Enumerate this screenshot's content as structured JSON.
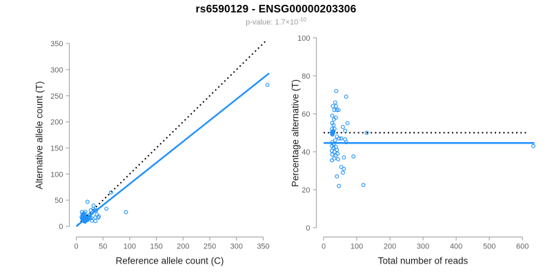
{
  "header": {
    "title": "rs6590129 - ENSG00000203306",
    "pvalue_text": "p-value: 1.7×10",
    "pvalue_exponent": "-10"
  },
  "colors": {
    "point_blue": "#1E90FF",
    "fit_blue": "#1E90FF",
    "reference_black": "#000000",
    "axis_line": "#a9a9a9",
    "tick_text": "#646464",
    "axis_title_text": "#1f1f1f",
    "subtitle_gray": "#9b9b9b"
  },
  "chart_data": [
    {
      "type": "scatter",
      "panel": "left",
      "xlabel": "Reference allele count (C)",
      "ylabel": "Alternative allele count (T)",
      "xlim": [
        0,
        362
      ],
      "ylim": [
        0,
        358
      ],
      "xticks": [
        0,
        50,
        100,
        150,
        200,
        250,
        300,
        350
      ],
      "yticks": [
        0,
        50,
        100,
        150,
        200,
        250,
        300,
        350
      ],
      "grid": false,
      "legend": null,
      "lines": [
        {
          "name": "identity-line",
          "style": "dotted",
          "x1": 2.5,
          "y1": 2.5,
          "x2": 356,
          "y2": 356
        },
        {
          "name": "regression-line",
          "style": "solid",
          "x1": 0,
          "y1": 0,
          "x2": 361,
          "y2": 293
        }
      ],
      "points": [
        [
          10.6,
          27.4
        ],
        [
          21.1,
          46.9
        ],
        [
          11.9,
          23.1
        ],
        [
          10.1,
          17.9
        ],
        [
          13.3,
          23.7
        ],
        [
          12.2,
          19.8
        ],
        [
          15.2,
          24.8
        ],
        [
          17.1,
          27.9
        ],
        [
          10.7,
          15.3
        ],
        [
          15.5,
          21.5
        ],
        [
          13.3,
          17.7
        ],
        [
          27.3,
          30.7
        ],
        [
          32.4,
          39.6
        ],
        [
          11.7,
          14.3
        ],
        [
          13.8,
          16.2
        ],
        [
          12.0,
          13.0
        ],
        [
          15.8,
          17.2
        ],
        [
          13.4,
          13.6
        ],
        [
          14.5,
          14.5
        ],
        [
          13.0,
          12.9
        ],
        [
          12.5,
          12.6
        ],
        [
          14.0,
          14.0
        ],
        [
          13.6,
          14.3
        ],
        [
          12.3,
          12.7
        ],
        [
          14.8,
          15.2
        ],
        [
          12.9,
          13.1
        ],
        [
          31.9,
          33.2
        ],
        [
          65.0,
          65.0
        ],
        [
          20.8,
          19.2
        ],
        [
          24.9,
          22.1
        ],
        [
          28.1,
          24.9
        ],
        [
          34.8,
          30.2
        ],
        [
          18.9,
          16.1
        ],
        [
          14.3,
          11.7
        ],
        [
          37.4,
          30.6
        ],
        [
          16.8,
          13.2
        ],
        [
          14.3,
          10.8
        ],
        [
          21.3,
          15.7
        ],
        [
          17.4,
          12.6
        ],
        [
          23.6,
          16.4
        ],
        [
          14.9,
          10.1
        ],
        [
          19.8,
          13.2
        ],
        [
          25.6,
          16.4
        ],
        [
          16.0,
          10.0
        ],
        [
          22.9,
          14.1
        ],
        [
          38.4,
          22.6
        ],
        [
          56.3,
          33.8
        ],
        [
          20.3,
          11.7
        ],
        [
          28.2,
          15.8
        ],
        [
          16.1,
          8.9
        ],
        [
          36.0,
          17.0
        ],
        [
          42.1,
          18.9
        ],
        [
          41.2,
          16.8
        ],
        [
          29.2,
          10.8
        ],
        [
          35.9,
          10.1
        ],
        [
          93.0,
          27.0
        ],
        [
          358.0,
          271.0
        ]
      ]
    },
    {
      "type": "scatter",
      "panel": "right",
      "xlabel": "Total number of reads",
      "ylabel": "Percentage alternative (T)",
      "xlim": [
        0,
        636
      ],
      "ylim": [
        0,
        100
      ],
      "xticks": [
        0,
        100,
        200,
        300,
        400,
        500,
        600
      ],
      "yticks": [
        0,
        20,
        40,
        60,
        80,
        100
      ],
      "grid": false,
      "legend": null,
      "lines": [
        {
          "name": "null-line",
          "style": "dotted",
          "x1": 0,
          "y1": 50,
          "x2": 618,
          "y2": 50
        },
        {
          "name": "fit-line",
          "style": "solid",
          "x1": 0,
          "y1": 44.6,
          "x2": 636,
          "y2": 44.6
        }
      ],
      "points": [
        [
          38,
          72
        ],
        [
          68,
          69
        ],
        [
          35,
          66
        ],
        [
          28,
          64
        ],
        [
          37,
          64
        ],
        [
          32,
          62
        ],
        [
          40,
          62
        ],
        [
          45,
          62
        ],
        [
          26,
          59
        ],
        [
          37,
          58
        ],
        [
          31,
          57
        ],
        [
          58,
          53
        ],
        [
          72,
          55
        ],
        [
          26,
          55
        ],
        [
          30,
          54
        ],
        [
          25,
          52
        ],
        [
          33,
          52
        ],
        [
          27,
          50.5
        ],
        [
          29,
          50
        ],
        [
          26,
          49.8
        ],
        [
          25,
          50.2
        ],
        [
          28,
          50
        ],
        [
          27.5,
          50.7
        ],
        [
          25.6,
          49.4
        ],
        [
          29.5,
          50.9
        ],
        [
          26.5,
          49.1
        ],
        [
          65,
          51
        ],
        [
          130,
          50
        ],
        [
          40,
          48
        ],
        [
          47,
          47
        ],
        [
          53,
          47
        ],
        [
          65,
          46.5
        ],
        [
          35,
          46
        ],
        [
          26,
          45
        ],
        [
          68,
          45
        ],
        [
          30,
          44
        ],
        [
          25,
          43
        ],
        [
          37,
          42.5
        ],
        [
          30,
          42
        ],
        [
          40,
          41
        ],
        [
          25,
          40.5
        ],
        [
          33,
          40
        ],
        [
          42,
          39
        ],
        [
          26,
          38.5
        ],
        [
          37,
          38
        ],
        [
          61,
          37
        ],
        [
          90,
          37.5
        ],
        [
          32,
          36.5
        ],
        [
          44,
          36
        ],
        [
          25,
          35.5
        ],
        [
          53,
          32
        ],
        [
          61,
          31
        ],
        [
          58,
          29
        ],
        [
          40,
          27
        ],
        [
          46,
          22
        ],
        [
          120,
          22.5
        ],
        [
          633,
          43
        ]
      ]
    }
  ]
}
